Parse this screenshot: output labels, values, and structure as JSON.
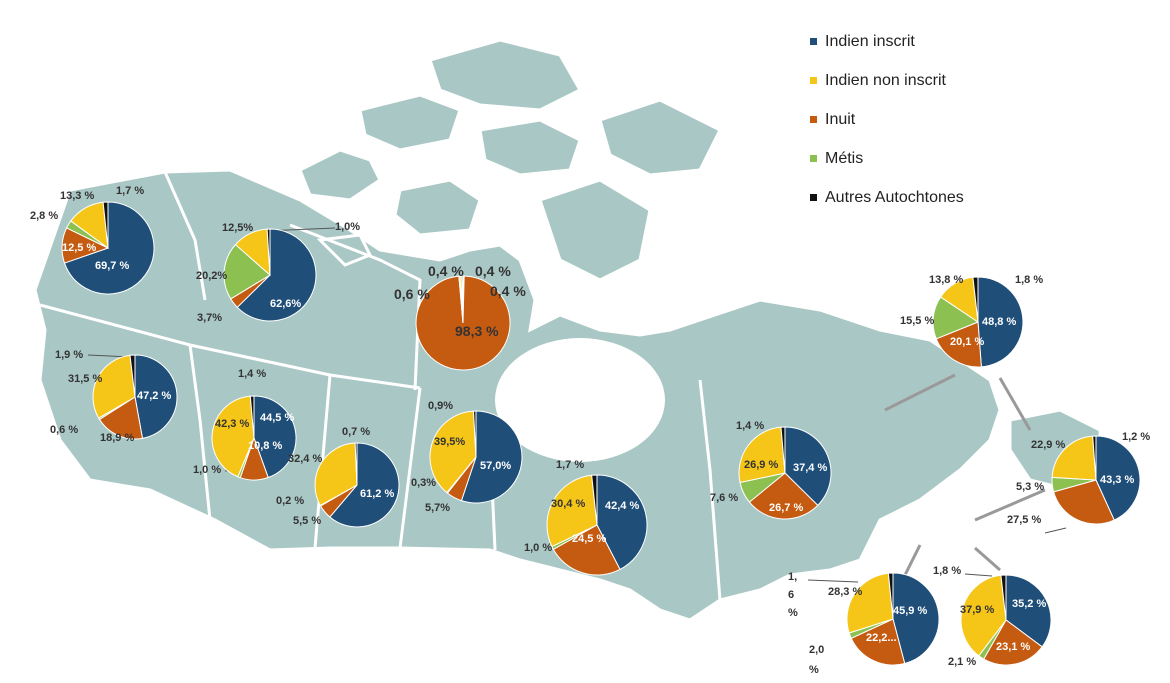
{
  "legend": [
    {
      "label": "Indien inscrit",
      "color": "#1f4e79"
    },
    {
      "label": "Indien non inscrit",
      "color": "#f5c518"
    },
    {
      "label": "Inuit",
      "color": "#c55a11"
    },
    {
      "label": "Métis",
      "color": "#8cc152"
    },
    {
      "label": "Autres Autochtones",
      "color": "#111111"
    }
  ],
  "map_colors": {
    "land": "#a9c7c5",
    "border": "#ffffff",
    "water": "#ffffff"
  },
  "chart_data": [
    {
      "region": "yukon",
      "type": "pie",
      "values": [
        69.7,
        13.3,
        12.5,
        2.8,
        1.7
      ],
      "labels": {
        "v0": "69,7 %",
        "v1": "13,3 %",
        "v2": "12,5 %",
        "v3": "2,8 %",
        "v4": "1,7 %"
      }
    },
    {
      "region": "nwt",
      "type": "pie",
      "values": [
        62.6,
        12.5,
        3.7,
        20.2,
        1.0
      ],
      "labels": {
        "v0": "62,6%",
        "v1": "12,5%",
        "v2": "3,7%",
        "v3": "20,2%",
        "v4": "1,0%"
      }
    },
    {
      "region": "nunavut",
      "type": "pie",
      "values": [
        0.4,
        0.6,
        98.3,
        0.4,
        0.4
      ],
      "labels": {
        "v0": "0,4 %",
        "v1": "0,6 %",
        "v2": "98,3 %",
        "v3": "0,4 %",
        "v4": "0,4 %"
      }
    },
    {
      "region": "bc",
      "type": "pie",
      "values": [
        47.2,
        31.5,
        18.9,
        0.6,
        1.9
      ],
      "labels": {
        "v0": "47,2 %",
        "v1": "31,5 %",
        "v2": "18,9 %",
        "v3": "0,6 %",
        "v4": "1,9 %"
      }
    },
    {
      "region": "alberta",
      "type": "pie",
      "values": [
        44.5,
        42.3,
        10.8,
        1.0,
        1.4
      ],
      "labels": {
        "v0": "44,5 %",
        "v1": "42,3 %",
        "v2": "10,8 %",
        "v3": "1,0 %",
        "v4": "1,4 %"
      }
    },
    {
      "region": "saskatchewan",
      "type": "pie",
      "values": [
        61.2,
        32.4,
        5.5,
        0.2,
        0.7
      ],
      "labels": {
        "v0": "61,2 %",
        "v1": "32,4 %",
        "v2": "5,5 %",
        "v3": "0,2 %",
        "v4": "0,7 %"
      }
    },
    {
      "region": "manitoba",
      "type": "pie",
      "values": [
        57.0,
        39.5,
        5.7,
        0.3,
        0.9
      ],
      "labels": {
        "v0": "57,0%",
        "v1": "39,5%",
        "v2": "5,7%",
        "v3": "0,3%",
        "v4": "0,9%"
      }
    },
    {
      "region": "ontario",
      "type": "pie",
      "values": [
        42.4,
        30.4,
        24.5,
        1.0,
        1.7
      ],
      "labels": {
        "v0": "42,4 %",
        "v1": "30,4 %",
        "v2": "24,5 %",
        "v3": "1,0 %",
        "v4": "1,7 %"
      }
    },
    {
      "region": "quebec",
      "type": "pie",
      "values": [
        37.4,
        26.9,
        26.7,
        7.6,
        1.4
      ],
      "labels": {
        "v0": "37,4 %",
        "v1": "26,9 %",
        "v2": "26,7 %",
        "v3": "7,6 %",
        "v4": "1,4 %"
      }
    },
    {
      "region": "labrador",
      "type": "pie",
      "values": [
        48.8,
        13.8,
        20.1,
        15.5,
        1.8
      ],
      "labels": {
        "v0": "48,8 %",
        "v1": "13,8 %",
        "v2": "20,1 %",
        "v3": "15,5 %",
        "v4": "1,8 %"
      }
    },
    {
      "region": "newfoundland",
      "type": "pie",
      "values": [
        43.3,
        22.9,
        27.5,
        5.3,
        1.2
      ],
      "labels": {
        "v0": "43,3 %",
        "v1": "22,9 %",
        "v2": "27,5 %",
        "v3": "5,3 %",
        "v4": "1,2 %"
      }
    },
    {
      "region": "new-brunswick",
      "type": "pie",
      "values": [
        45.9,
        28.3,
        22.2,
        2.0,
        1.6
      ],
      "labels": {
        "v0": "45,9 %",
        "v1": "28,3 %",
        "v2": "22,2...",
        "v3": "2,0 %",
        "v4": "1, 6 %"
      }
    },
    {
      "region": "nova-scotia",
      "type": "pie",
      "values": [
        35.2,
        37.9,
        23.1,
        2.1,
        1.8
      ],
      "labels": {
        "v0": "35,2 %",
        "v1": "37,9 %",
        "v2": "23,1 %",
        "v3": "2,1 %",
        "v4": "1,8 %"
      }
    }
  ]
}
